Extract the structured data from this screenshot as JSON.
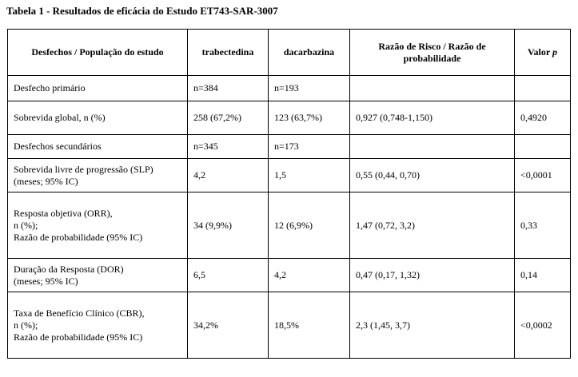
{
  "caption": "Tabela 1 - Resultados de eficácia do Estudo ET743-SAR-3007",
  "header": {
    "col1": "Desfechos / População do estudo",
    "col2": "trabectedina",
    "col3": "dacarbazina",
    "col4": "Razão de Risco / Razão de probabilidade",
    "col5_prefix": "Valor ",
    "col5_p": "p"
  },
  "rows": [
    {
      "c1": "Desfecho primário",
      "c2": "n=384",
      "c3": "n=193",
      "c4": "",
      "c5": ""
    },
    {
      "c1": "Sobrevida global, n (%)",
      "c2": "258 (67,2%)",
      "c3": "123 (63,7%)",
      "c4": "0,927 (0,748-1,150)",
      "c5": "0,4920"
    },
    {
      "c1": "Desfechos secundários",
      "c2": "n=345",
      "c3": "n=173",
      "c4": "",
      "c5": ""
    },
    {
      "c1": "Sobrevida livre de progressão (SLP)\n(meses; 95% IC)",
      "c2": "4,2",
      "c3": "1,5",
      "c4": "0,55 (0,44, 0,70)",
      "c5": "<0,0001"
    },
    {
      "c1": "Resposta objetiva (ORR),\nn (%);\nRazão de probabilidade (95% IC)",
      "c2": "34 (9,9%)",
      "c3": "12 (6,9%)",
      "c4": "1,47 (0,72, 3,2)",
      "c5": "0,33"
    },
    {
      "c1": "Duração da Resposta (DOR)\n(meses; 95% IC)",
      "c2": "6,5",
      "c3": "4,2",
      "c4": "0,47 (0,17, 1,32)",
      "c5": "0,14"
    },
    {
      "c1": "Taxa de Benefício Clínico (CBR),\nn (%);\nRazão de probabilidade (95% IC)",
      "c2": "34,2%",
      "c3": "18,5%",
      "c4": "2,3 (1,45, 3,7)",
      "c5": "<0,0002"
    }
  ]
}
